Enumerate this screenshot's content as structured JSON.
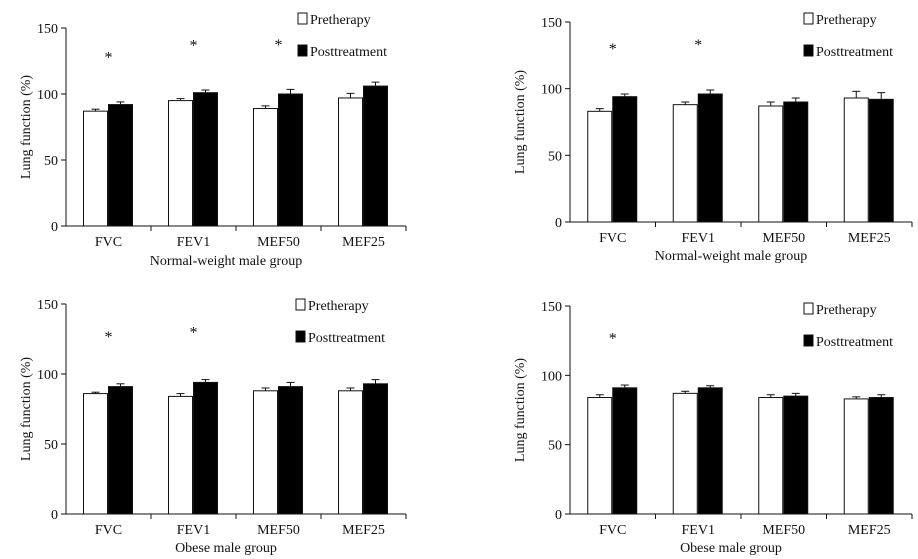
{
  "chart_data": [
    {
      "type": "bar",
      "categories": [
        "FVC",
        "FEV1",
        "MEF50",
        "MEF25"
      ],
      "xlabel": "Normal-weight male group",
      "ylabel": "Lung function (%)",
      "ylim": [
        0,
        150
      ],
      "yticks": [
        0,
        50,
        100,
        150
      ],
      "legend_position": "top-right",
      "series": [
        {
          "name": "Pretherapy",
          "color": "#ffffff",
          "values": [
            87,
            95,
            89,
            97
          ],
          "errors": [
            1.5,
            1.5,
            2,
            3.5
          ]
        },
        {
          "name": "Posttreatment",
          "color": "#000000",
          "values": [
            92,
            101,
            100,
            106
          ],
          "errors": [
            2,
            2,
            3.5,
            3
          ]
        }
      ],
      "significance": [
        "*",
        "*",
        "*",
        ""
      ]
    },
    {
      "type": "bar",
      "categories": [
        "FVC",
        "FEV1",
        "MEF50",
        "MEF25"
      ],
      "xlabel": "Normal-weight male group",
      "ylabel": "Lung function (%)",
      "ylim": [
        0,
        150
      ],
      "yticks": [
        0,
        50,
        100,
        150
      ],
      "legend_position": "top-right",
      "series": [
        {
          "name": "Pretherapy",
          "color": "#ffffff",
          "values": [
            83,
            88,
            87,
            93
          ],
          "errors": [
            2,
            2,
            3,
            5
          ]
        },
        {
          "name": "Posttreatment",
          "color": "#000000",
          "values": [
            94,
            96,
            90,
            92
          ],
          "errors": [
            2,
            3,
            3,
            5
          ]
        }
      ],
      "significance": [
        "*",
        "*",
        "",
        ""
      ]
    },
    {
      "type": "bar",
      "categories": [
        "FVC",
        "FEV1",
        "MEF50",
        "MEF25"
      ],
      "xlabel": "Obese male group",
      "ylabel": "Lung function (%)",
      "ylim": [
        0,
        150
      ],
      "yticks": [
        0,
        50,
        100,
        150
      ],
      "legend_position": "top-right",
      "series": [
        {
          "name": "Pretherapy",
          "color": "#ffffff",
          "values": [
            86,
            84,
            88,
            88
          ],
          "errors": [
            1,
            2,
            2,
            2
          ]
        },
        {
          "name": "Posttreatment",
          "color": "#000000",
          "values": [
            91,
            94,
            91,
            93
          ],
          "errors": [
            2,
            2,
            3,
            3
          ]
        }
      ],
      "significance": [
        "*",
        "*",
        "",
        ""
      ]
    },
    {
      "type": "bar",
      "categories": [
        "FVC",
        "FEV1",
        "MEF50",
        "MEF25"
      ],
      "xlabel": "Obese male group",
      "ylabel": "Lung function (%)",
      "ylim": [
        0,
        150
      ],
      "yticks": [
        0,
        50,
        100,
        150
      ],
      "legend_position": "top-right",
      "series": [
        {
          "name": "Pretherapy",
          "color": "#ffffff",
          "values": [
            84,
            87,
            84,
            83
          ],
          "errors": [
            2,
            1.5,
            2,
            1.5
          ]
        },
        {
          "name": "Posttreatment",
          "color": "#000000",
          "values": [
            91,
            91,
            85,
            84
          ],
          "errors": [
            2,
            1.5,
            2,
            2
          ]
        }
      ],
      "significance": [
        "*",
        "",
        "",
        ""
      ]
    }
  ]
}
